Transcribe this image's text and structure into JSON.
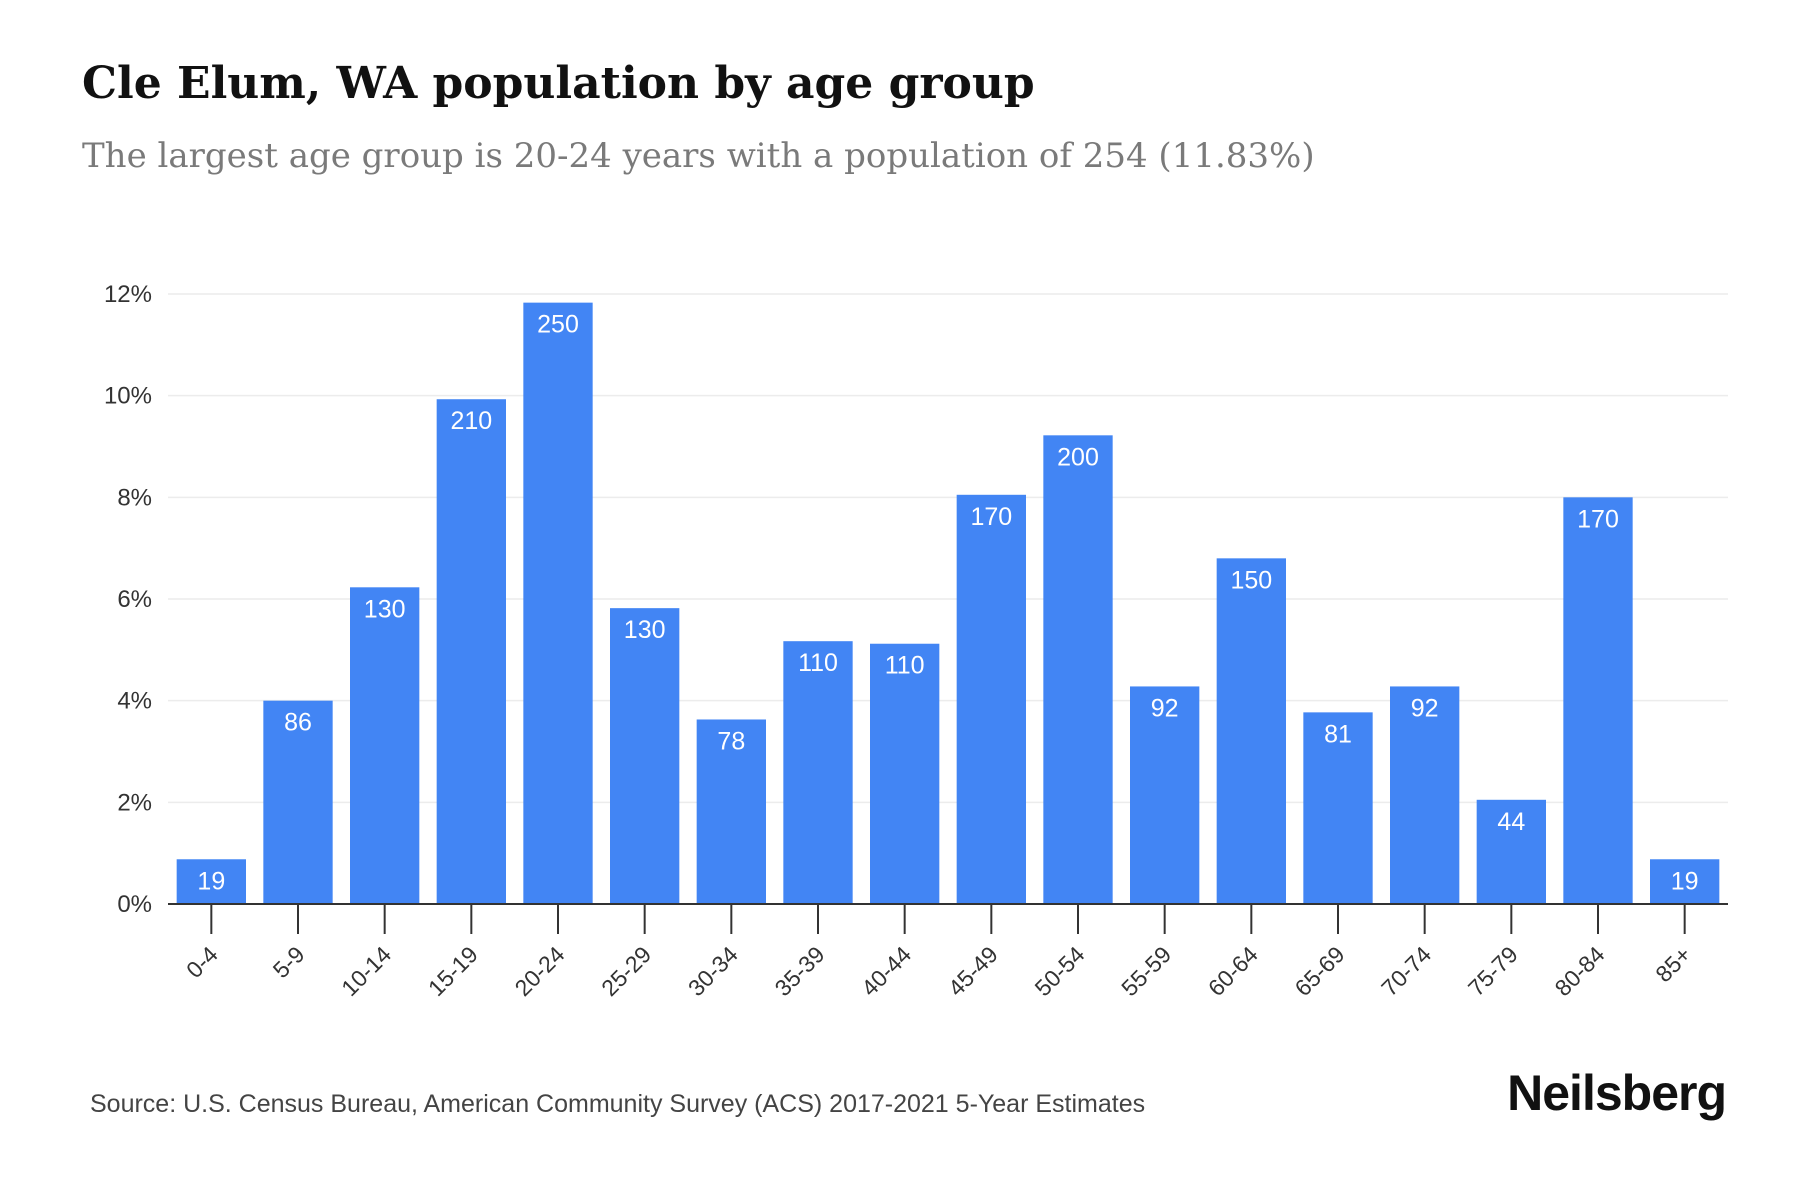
{
  "title": "Cle Elum, WA population by age group",
  "subtitle": "The largest age group is 20-24 years with a population of 254 (11.83%)",
  "source": "Source: U.S. Census Bureau, American Community Survey (ACS) 2017-2021 5-Year Estimates",
  "brand": "Neilsberg",
  "colors": {
    "bar": "#4285f4",
    "bar_label": "#ffffff",
    "grid": "#ececec",
    "axis": "#333333"
  },
  "chart_data": {
    "type": "bar",
    "categories": [
      "0-4",
      "5-9",
      "10-14",
      "15-19",
      "20-24",
      "25-29",
      "30-34",
      "35-39",
      "40-44",
      "45-49",
      "50-54",
      "55-59",
      "60-64",
      "65-69",
      "70-74",
      "75-79",
      "80-84",
      "85+"
    ],
    "percent": [
      0.88,
      4.0,
      6.23,
      9.93,
      11.83,
      5.82,
      3.63,
      5.17,
      5.12,
      8.05,
      9.22,
      4.28,
      6.8,
      3.77,
      4.28,
      2.05,
      8.0,
      0.88
    ],
    "labels": [
      "19",
      "86",
      "130",
      "210",
      "250",
      "130",
      "78",
      "110",
      "110",
      "170",
      "200",
      "92",
      "150",
      "81",
      "92",
      "44",
      "170",
      "19"
    ],
    "yticks": [
      "0%",
      "2%",
      "4%",
      "6%",
      "8%",
      "10%",
      "12%"
    ],
    "ylim": [
      0,
      12
    ],
    "xlabel": "",
    "ylabel": "",
    "grid": true
  }
}
